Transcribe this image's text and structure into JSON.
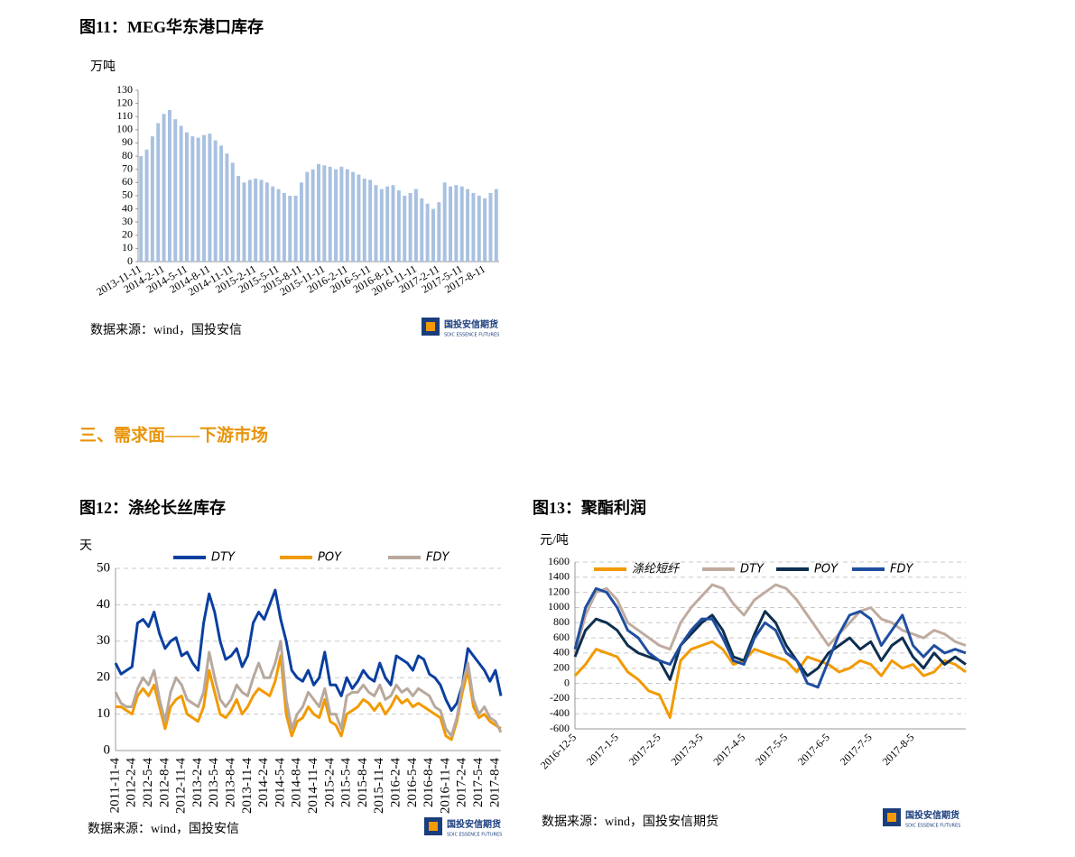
{
  "document": {
    "fig11_title": "图11：MEG华东港口库存",
    "section_heading": "三、需求面——下游市场",
    "fig12_title": "图12：涤纶长丝库存",
    "fig13_title": "图13：聚酯利润",
    "source_11": "数据来源：wind，国投安信",
    "source_12": "数据来源：wind，国投安信",
    "source_13": "数据来源：wind，国投安信期货",
    "logo_cn": "国投安信期货",
    "logo_en": "SDIC ESSENCE FUTURES"
  },
  "chart_data": [
    {
      "type": "bar",
      "y_label": "万吨",
      "color": "#a9c1e0",
      "grid": false,
      "ylim": [
        0,
        130
      ],
      "yticks": [
        0,
        10,
        20,
        30,
        40,
        50,
        60,
        70,
        80,
        90,
        100,
        110,
        120,
        130
      ],
      "categories": [
        "2013-11-11",
        null,
        null,
        null,
        "2014-2-11",
        null,
        null,
        null,
        "2014-5-11",
        null,
        null,
        null,
        "2014-8-11",
        null,
        null,
        null,
        "2014-11-11",
        null,
        null,
        null,
        "2015-2-11",
        null,
        null,
        null,
        "2015-5-11",
        null,
        null,
        null,
        "2015-8-11",
        null,
        null,
        null,
        "2015-11-11",
        null,
        null,
        null,
        "2016-2-11",
        null,
        null,
        null,
        "2016-5-11",
        null,
        null,
        null,
        "2016-8-11",
        null,
        null,
        null,
        "2016-11-11",
        null,
        null,
        null,
        "2017-2-11",
        null,
        null,
        null,
        "2017-5-11",
        null,
        null,
        null,
        "2017-8-11",
        null,
        null
      ],
      "values": [
        80,
        85,
        95,
        105,
        112,
        115,
        108,
        103,
        98,
        95,
        94,
        96,
        97,
        92,
        88,
        82,
        75,
        65,
        60,
        62,
        63,
        62,
        60,
        57,
        55,
        52,
        50,
        50,
        60,
        68,
        70,
        74,
        73,
        72,
        70,
        72,
        70,
        68,
        66,
        63,
        62,
        58,
        55,
        57,
        58,
        54,
        50,
        52,
        55,
        48,
        44,
        40,
        45,
        60,
        57,
        58,
        57,
        55,
        52,
        50,
        48,
        52,
        55
      ]
    },
    {
      "type": "line",
      "y_label": "天",
      "grid": true,
      "legend": "top",
      "ylim": [
        0,
        50
      ],
      "yticks": [
        0,
        10,
        20,
        30,
        40,
        50
      ],
      "categories": [
        "2011-11-4",
        null,
        null,
        "2012-2-4",
        null,
        null,
        "2012-5-4",
        null,
        null,
        "2012-8-4",
        null,
        null,
        "2012-11-4",
        null,
        null,
        "2013-2-4",
        null,
        null,
        "2013-5-4",
        null,
        null,
        "2013-8-4",
        null,
        null,
        "2013-11-4",
        null,
        null,
        "2014-2-4",
        null,
        null,
        "2014-5-4",
        null,
        null,
        "2014-8-4",
        null,
        null,
        "2014-11-4",
        null,
        null,
        "2015-2-4",
        null,
        null,
        "2015-5-4",
        null,
        null,
        "2015-8-4",
        null,
        null,
        "2015-11-4",
        null,
        null,
        "2016-2-4",
        null,
        null,
        "2016-5-4",
        null,
        null,
        "2016-8-4",
        null,
        null,
        "2016-11-4",
        null,
        null,
        "2017-2-4",
        null,
        null,
        "2017-5-4",
        null,
        null,
        "2017-8-4",
        null
      ],
      "series": [
        {
          "name": "DTY",
          "color": "#0a3fa0",
          "values": [
            24,
            21,
            22,
            23,
            35,
            36,
            34,
            38,
            32,
            28,
            30,
            31,
            26,
            27,
            24,
            22,
            35,
            43,
            38,
            30,
            25,
            26,
            28,
            23,
            26,
            35,
            38,
            36,
            40,
            44,
            36,
            30,
            22,
            20,
            19,
            22,
            18,
            20,
            27,
            18,
            18,
            15,
            20,
            17,
            19,
            22,
            20,
            19,
            24,
            20,
            18,
            26,
            25,
            24,
            22,
            26,
            25,
            21,
            20,
            18,
            14,
            11,
            13,
            18,
            28,
            26,
            24,
            22,
            19,
            22,
            15
          ]
        },
        {
          "name": "POY",
          "color": "#f29a00",
          "values": [
            12,
            12,
            11,
            10,
            15,
            17,
            15,
            18,
            12,
            6,
            12,
            14,
            15,
            10,
            9,
            8,
            12,
            22,
            16,
            10,
            9,
            11,
            14,
            10,
            12,
            15,
            17,
            16,
            15,
            19,
            26,
            10,
            4,
            8,
            9,
            12,
            10,
            9,
            14,
            8,
            7,
            4,
            10,
            11,
            12,
            14,
            13,
            11,
            13,
            10,
            12,
            15,
            13,
            14,
            12,
            13,
            12,
            11,
            10,
            9,
            4,
            3,
            8,
            16,
            22,
            12,
            9,
            10,
            8,
            7,
            6
          ]
        },
        {
          "name": "FDY",
          "color": "#b8a89c",
          "values": [
            16,
            13,
            12,
            12,
            17,
            20,
            18,
            22,
            14,
            8,
            16,
            20,
            18,
            14,
            13,
            12,
            16,
            27,
            20,
            14,
            12,
            14,
            18,
            16,
            15,
            20,
            24,
            20,
            20,
            24,
            30,
            14,
            6,
            10,
            12,
            16,
            14,
            12,
            17,
            10,
            10,
            6,
            15,
            16,
            16,
            18,
            16,
            15,
            18,
            14,
            15,
            18,
            16,
            17,
            15,
            17,
            16,
            15,
            12,
            11,
            6,
            4,
            9,
            18,
            24,
            14,
            10,
            12,
            9,
            8,
            5
          ]
        }
      ]
    },
    {
      "type": "line",
      "y_label": "元/吨",
      "grid": true,
      "legend": "top",
      "ylim": [
        -600,
        1600
      ],
      "yticks": [
        -600,
        -400,
        -200,
        0,
        200,
        400,
        600,
        800,
        1000,
        1200,
        1400,
        1600
      ],
      "categories": [
        "2016-12-5",
        null,
        null,
        null,
        "2017-1-5",
        null,
        null,
        null,
        "2017-2-5",
        null,
        null,
        null,
        "2017-3-5",
        null,
        null,
        null,
        "2017-4-5",
        null,
        null,
        null,
        "2017-5-5",
        null,
        null,
        null,
        "2017-6-5",
        null,
        null,
        null,
        "2017-7-5",
        null,
        null,
        null,
        "2017-8-5",
        null,
        null,
        null,
        null,
        null
      ],
      "series": [
        {
          "name": "涤纶短纤",
          "color": "#f29a00",
          "values": [
            100,
            250,
            450,
            400,
            350,
            150,
            50,
            -100,
            -150,
            -450,
            300,
            450,
            500,
            550,
            450,
            250,
            300,
            450,
            400,
            350,
            300,
            150,
            350,
            300,
            250,
            150,
            200,
            300,
            250,
            100,
            300,
            200,
            250,
            100,
            150,
            300,
            250,
            150
          ]
        },
        {
          "name": "DTY",
          "color": "#c0aba0",
          "values": [
            400,
            900,
            1200,
            1250,
            1100,
            800,
            700,
            600,
            500,
            450,
            800,
            1000,
            1150,
            1300,
            1250,
            1050,
            900,
            1100,
            1200,
            1300,
            1250,
            1100,
            900,
            700,
            500,
            650,
            800,
            950,
            1000,
            850,
            800,
            700,
            650,
            600,
            700,
            650,
            550,
            500
          ]
        },
        {
          "name": "POY",
          "color": "#0d2f4f",
          "values": [
            350,
            700,
            850,
            800,
            700,
            500,
            400,
            350,
            300,
            50,
            500,
            650,
            800,
            900,
            700,
            350,
            300,
            650,
            950,
            800,
            500,
            300,
            100,
            200,
            400,
            500,
            600,
            450,
            550,
            300,
            500,
            600,
            350,
            200,
            400,
            250,
            350,
            250
          ]
        },
        {
          "name": "FDY",
          "color": "#1f4ea0",
          "values": [
            450,
            1000,
            1250,
            1200,
            1000,
            700,
            600,
            400,
            300,
            250,
            500,
            700,
            850,
            850,
            600,
            300,
            250,
            600,
            800,
            700,
            400,
            300,
            0,
            -50,
            300,
            650,
            900,
            950,
            850,
            500,
            700,
            900,
            500,
            350,
            500,
            400,
            450,
            400
          ]
        }
      ]
    }
  ]
}
